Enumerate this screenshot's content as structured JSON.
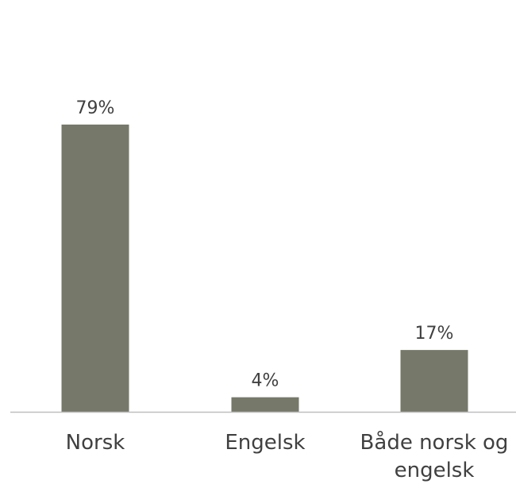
{
  "chart_data": {
    "type": "bar",
    "categories": [
      "Norsk",
      "Engelsk",
      "Både norsk og engelsk"
    ],
    "category_lines": [
      [
        "Norsk"
      ],
      [
        "Engelsk"
      ],
      [
        "Både norsk og",
        "engelsk"
      ]
    ],
    "values": [
      79,
      4,
      17
    ],
    "value_labels": [
      "79%",
      "4%",
      "17%"
    ],
    "unit": "%",
    "ylim": [
      0,
      79
    ],
    "grid": false,
    "colors": {
      "bar": "#767869",
      "axis": "#bfbfbf",
      "text": "#404040"
    }
  }
}
